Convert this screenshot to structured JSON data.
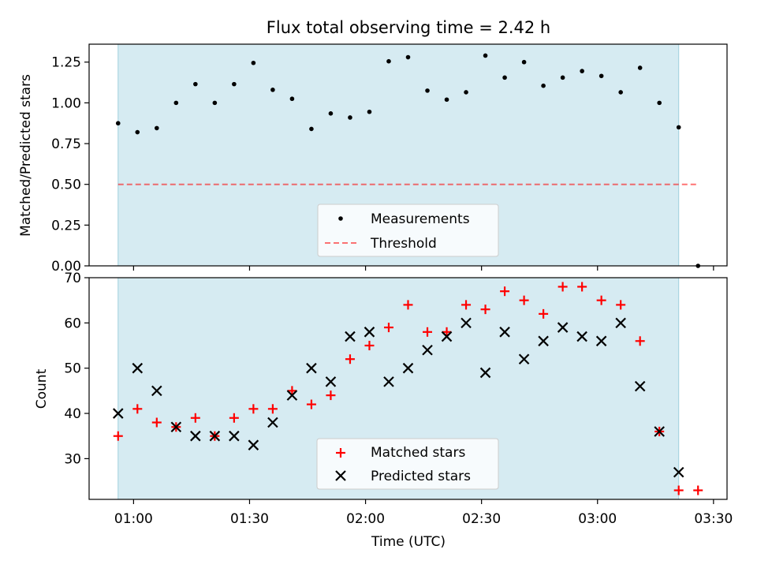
{
  "figure": {
    "title": "Flux total observing time = 2.42 h",
    "xlabel": "Time (UTC)",
    "x_ticks": [
      "01:00",
      "01:30",
      "02:00",
      "02:30",
      "03:00",
      "03:30"
    ],
    "x_tick_minutes": [
      60,
      90,
      120,
      150,
      180,
      210
    ],
    "xlim_minutes": [
      48.5,
      213.5
    ],
    "shaded_span_minutes": [
      56,
      201
    ],
    "colors": {
      "span": "#add8e6",
      "threshold": "#ff0000",
      "matched": "#ff0000",
      "predicted": "#000000",
      "measurement": "#000000"
    }
  },
  "chart_data": [
    {
      "type": "scatter",
      "ylabel": "Matched/Predicted stars",
      "ylim": [
        0,
        1.36
      ],
      "y_ticks": [
        "0.00",
        "0.25",
        "0.50",
        "0.75",
        "1.00",
        "1.25"
      ],
      "y_tick_values": [
        0,
        0.25,
        0.5,
        0.75,
        1.0,
        1.25
      ],
      "legend_position": "bottom-center",
      "threshold": {
        "name": "Threshold",
        "y": 0.5,
        "x_range": [
          56,
          206
        ],
        "style": "dashed"
      },
      "series": [
        {
          "name": "Measurements",
          "x": [
            56,
            61,
            66,
            71,
            76,
            81,
            86,
            91,
            96,
            101,
            106,
            111,
            116,
            121,
            126,
            131,
            136,
            141,
            146,
            151,
            156,
            161,
            166,
            171,
            176,
            181,
            186,
            191,
            196,
            201,
            206
          ],
          "y": [
            0.875,
            0.82,
            0.845,
            1.0,
            1.115,
            1.0,
            1.115,
            1.245,
            1.08,
            1.025,
            0.84,
            0.935,
            0.91,
            0.945,
            1.255,
            1.28,
            1.075,
            1.02,
            1.065,
            1.29,
            1.155,
            1.25,
            1.105,
            1.155,
            1.195,
            1.165,
            1.065,
            1.215,
            1.0,
            0.85,
            0.0
          ]
        }
      ]
    },
    {
      "type": "scatter",
      "ylabel": "Count",
      "ylim": [
        21,
        70
      ],
      "y_ticks": [
        "30",
        "40",
        "50",
        "60",
        "70"
      ],
      "y_tick_values": [
        30,
        40,
        50,
        60,
        70
      ],
      "legend_position": "bottom-center",
      "series": [
        {
          "name": "Matched stars",
          "marker": "plus",
          "x": [
            56,
            61,
            66,
            71,
            76,
            81,
            86,
            91,
            96,
            101,
            106,
            111,
            116,
            121,
            126,
            131,
            136,
            141,
            146,
            151,
            156,
            161,
            166,
            171,
            176,
            181,
            186,
            191,
            196,
            201,
            206
          ],
          "y": [
            35,
            41,
            38,
            37,
            39,
            35,
            39,
            41,
            41,
            45,
            42,
            44,
            52,
            55,
            59,
            64,
            58,
            58,
            64,
            63,
            67,
            65,
            62,
            68,
            68,
            65,
            64,
            56,
            36,
            23,
            23
          ]
        },
        {
          "name": "Predicted stars",
          "marker": "x",
          "x": [
            56,
            61,
            66,
            71,
            76,
            81,
            86,
            91,
            96,
            101,
            106,
            111,
            116,
            121,
            126,
            131,
            136,
            141,
            146,
            151,
            156,
            161,
            166,
            171,
            176,
            181,
            186,
            191,
            196,
            201
          ],
          "y": [
            40,
            50,
            45,
            37,
            35,
            35,
            35,
            33,
            38,
            44,
            50,
            47,
            57,
            58,
            47,
            50,
            54,
            57,
            60,
            49,
            58,
            52,
            56,
            59,
            57,
            56,
            60,
            46,
            36,
            27
          ]
        }
      ]
    }
  ]
}
